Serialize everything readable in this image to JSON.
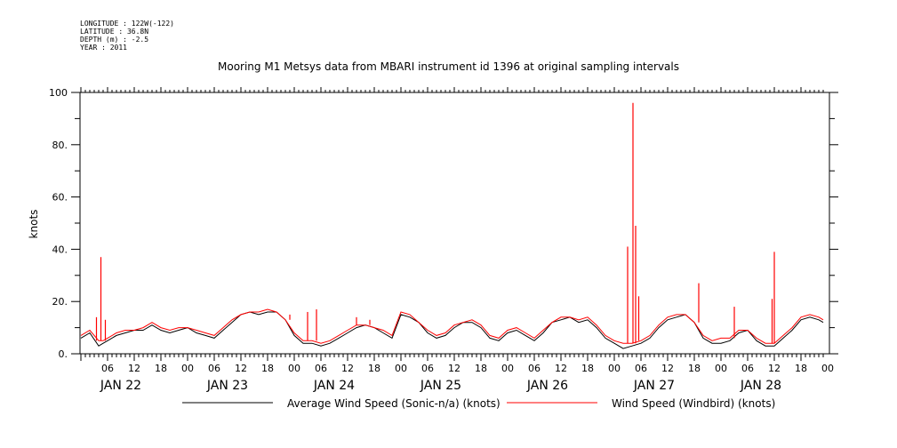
{
  "header": {
    "longitude": "LONGITUDE : 122W(-122)",
    "latitude": "LATITUDE : 36.8N",
    "depth": "DEPTH (m) : -2.5",
    "year": "YEAR : 2011"
  },
  "chart_data": {
    "type": "line",
    "title": "Mooring M1 Metsys data from MBARI instrument id 1396 at original sampling intervals",
    "ylabel": "knots",
    "xlabel": "",
    "ylim": [
      0,
      100
    ],
    "xlim_hours": [
      0,
      167
    ],
    "yticks": [
      {
        "value": 0,
        "label": "0."
      },
      {
        "value": 20,
        "label": "20."
      },
      {
        "value": 40,
        "label": "40."
      },
      {
        "value": 60,
        "label": "60."
      },
      {
        "value": 80,
        "label": "80."
      },
      {
        "value": 100,
        "label": "100"
      }
    ],
    "hour_ticks": [
      {
        "value": 6,
        "label": "06"
      },
      {
        "value": 12,
        "label": "12"
      },
      {
        "value": 18,
        "label": "18"
      },
      {
        "value": 24,
        "label": "00"
      },
      {
        "value": 30,
        "label": "06"
      },
      {
        "value": 36,
        "label": "12"
      },
      {
        "value": 42,
        "label": "18"
      },
      {
        "value": 48,
        "label": "00"
      },
      {
        "value": 54,
        "label": "06"
      },
      {
        "value": 60,
        "label": "12"
      },
      {
        "value": 66,
        "label": "18"
      },
      {
        "value": 72,
        "label": "00"
      },
      {
        "value": 78,
        "label": "06"
      },
      {
        "value": 84,
        "label": "12"
      },
      {
        "value": 90,
        "label": "18"
      },
      {
        "value": 96,
        "label": "00"
      },
      {
        "value": 102,
        "label": "06"
      },
      {
        "value": 108,
        "label": "12"
      },
      {
        "value": 114,
        "label": "18"
      },
      {
        "value": 120,
        "label": "00"
      },
      {
        "value": 126,
        "label": "06"
      },
      {
        "value": 132,
        "label": "12"
      },
      {
        "value": 138,
        "label": "18"
      },
      {
        "value": 144,
        "label": "00"
      },
      {
        "value": 150,
        "label": "06"
      },
      {
        "value": 156,
        "label": "12"
      },
      {
        "value": 162,
        "label": "18"
      },
      {
        "value": 168,
        "label": "00"
      }
    ],
    "day_labels": [
      {
        "value": 9,
        "label": "JAN 22"
      },
      {
        "value": 33,
        "label": "JAN 23"
      },
      {
        "value": 57,
        "label": "JAN 24"
      },
      {
        "value": 81,
        "label": "JAN 25"
      },
      {
        "value": 105,
        "label": "JAN 26"
      },
      {
        "value": 129,
        "label": "JAN 27"
      },
      {
        "value": 153,
        "label": "JAN 28"
      }
    ],
    "series": [
      {
        "name": "Average Wind Speed (Sonic-n/a) (knots)",
        "color": "#000000",
        "points": [
          [
            0,
            6
          ],
          [
            2,
            8
          ],
          [
            4,
            3
          ],
          [
            5,
            4
          ],
          [
            6,
            5
          ],
          [
            8,
            7
          ],
          [
            10,
            8
          ],
          [
            12,
            9
          ],
          [
            14,
            9
          ],
          [
            16,
            11
          ],
          [
            18,
            9
          ],
          [
            20,
            8
          ],
          [
            22,
            9
          ],
          [
            24,
            10
          ],
          [
            26,
            8
          ],
          [
            28,
            7
          ],
          [
            30,
            6
          ],
          [
            32,
            9
          ],
          [
            34,
            12
          ],
          [
            36,
            15
          ],
          [
            38,
            16
          ],
          [
            40,
            15
          ],
          [
            42,
            16
          ],
          [
            44,
            16
          ],
          [
            46,
            13
          ],
          [
            48,
            7
          ],
          [
            50,
            4
          ],
          [
            52,
            4
          ],
          [
            54,
            3
          ],
          [
            56,
            4
          ],
          [
            58,
            6
          ],
          [
            60,
            8
          ],
          [
            62,
            10
          ],
          [
            64,
            11
          ],
          [
            66,
            10
          ],
          [
            68,
            8
          ],
          [
            70,
            6
          ],
          [
            72,
            15
          ],
          [
            74,
            14
          ],
          [
            76,
            12
          ],
          [
            78,
            8
          ],
          [
            80,
            6
          ],
          [
            82,
            7
          ],
          [
            84,
            10
          ],
          [
            86,
            12
          ],
          [
            88,
            12
          ],
          [
            90,
            10
          ],
          [
            92,
            6
          ],
          [
            94,
            5
          ],
          [
            96,
            8
          ],
          [
            98,
            9
          ],
          [
            100,
            7
          ],
          [
            102,
            5
          ],
          [
            104,
            8
          ],
          [
            106,
            12
          ],
          [
            108,
            13
          ],
          [
            110,
            14
          ],
          [
            112,
            12
          ],
          [
            114,
            13
          ],
          [
            116,
            10
          ],
          [
            118,
            6
          ],
          [
            120,
            4
          ],
          [
            122,
            2
          ],
          [
            124,
            3
          ],
          [
            126,
            4
          ],
          [
            128,
            6
          ],
          [
            130,
            10
          ],
          [
            132,
            13
          ],
          [
            134,
            14
          ],
          [
            136,
            15
          ],
          [
            138,
            12
          ],
          [
            140,
            6
          ],
          [
            142,
            4
          ],
          [
            144,
            4
          ],
          [
            146,
            5
          ],
          [
            148,
            8
          ],
          [
            150,
            9
          ],
          [
            152,
            5
          ],
          [
            154,
            3
          ],
          [
            156,
            3
          ],
          [
            158,
            6
          ],
          [
            160,
            9
          ],
          [
            162,
            13
          ],
          [
            164,
            14
          ],
          [
            166,
            13
          ],
          [
            167,
            12
          ]
        ],
        "spikes": []
      },
      {
        "name": "Wind Speed (Windbird) (knots)",
        "color": "#ff0000",
        "points": [
          [
            0,
            7
          ],
          [
            2,
            9
          ],
          [
            4,
            5
          ],
          [
            5,
            5
          ],
          [
            6,
            6
          ],
          [
            8,
            8
          ],
          [
            10,
            9
          ],
          [
            12,
            9
          ],
          [
            14,
            10
          ],
          [
            16,
            12
          ],
          [
            18,
            10
          ],
          [
            20,
            9
          ],
          [
            22,
            10
          ],
          [
            24,
            10
          ],
          [
            26,
            9
          ],
          [
            28,
            8
          ],
          [
            30,
            7
          ],
          [
            32,
            10
          ],
          [
            34,
            13
          ],
          [
            36,
            15
          ],
          [
            38,
            16
          ],
          [
            40,
            16
          ],
          [
            42,
            17
          ],
          [
            44,
            16
          ],
          [
            46,
            13
          ],
          [
            48,
            8
          ],
          [
            50,
            5
          ],
          [
            52,
            5
          ],
          [
            54,
            4
          ],
          [
            56,
            5
          ],
          [
            58,
            7
          ],
          [
            60,
            9
          ],
          [
            62,
            11
          ],
          [
            64,
            11
          ],
          [
            66,
            10
          ],
          [
            68,
            9
          ],
          [
            70,
            7
          ],
          [
            72,
            16
          ],
          [
            74,
            15
          ],
          [
            76,
            12
          ],
          [
            78,
            9
          ],
          [
            80,
            7
          ],
          [
            82,
            8
          ],
          [
            84,
            11
          ],
          [
            86,
            12
          ],
          [
            88,
            13
          ],
          [
            90,
            11
          ],
          [
            92,
            7
          ],
          [
            94,
            6
          ],
          [
            96,
            9
          ],
          [
            98,
            10
          ],
          [
            100,
            8
          ],
          [
            102,
            6
          ],
          [
            104,
            9
          ],
          [
            106,
            12
          ],
          [
            108,
            14
          ],
          [
            110,
            14
          ],
          [
            112,
            13
          ],
          [
            114,
            14
          ],
          [
            116,
            11
          ],
          [
            118,
            7
          ],
          [
            120,
            5
          ],
          [
            122,
            4
          ],
          [
            124,
            4
          ],
          [
            126,
            5
          ],
          [
            128,
            7
          ],
          [
            130,
            11
          ],
          [
            132,
            14
          ],
          [
            134,
            15
          ],
          [
            136,
            15
          ],
          [
            138,
            12
          ],
          [
            140,
            7
          ],
          [
            142,
            5
          ],
          [
            144,
            6
          ],
          [
            146,
            6
          ],
          [
            148,
            9
          ],
          [
            150,
            9
          ],
          [
            152,
            6
          ],
          [
            154,
            4
          ],
          [
            156,
            4
          ],
          [
            158,
            7
          ],
          [
            160,
            10
          ],
          [
            162,
            14
          ],
          [
            164,
            15
          ],
          [
            166,
            14
          ],
          [
            167,
            13
          ]
        ],
        "spikes": [
          [
            4.5,
            37
          ],
          [
            3.5,
            14
          ],
          [
            5.5,
            13
          ],
          [
            45,
            16
          ],
          [
            47,
            15
          ],
          [
            51,
            16
          ],
          [
            53,
            17
          ],
          [
            62,
            14
          ],
          [
            65,
            13
          ],
          [
            108,
            14
          ],
          [
            123,
            41
          ],
          [
            124.2,
            96
          ],
          [
            124.8,
            49
          ],
          [
            125.5,
            22
          ],
          [
            139,
            27
          ],
          [
            147,
            18
          ],
          [
            156,
            39
          ],
          [
            155.5,
            21
          ]
        ]
      }
    ]
  }
}
